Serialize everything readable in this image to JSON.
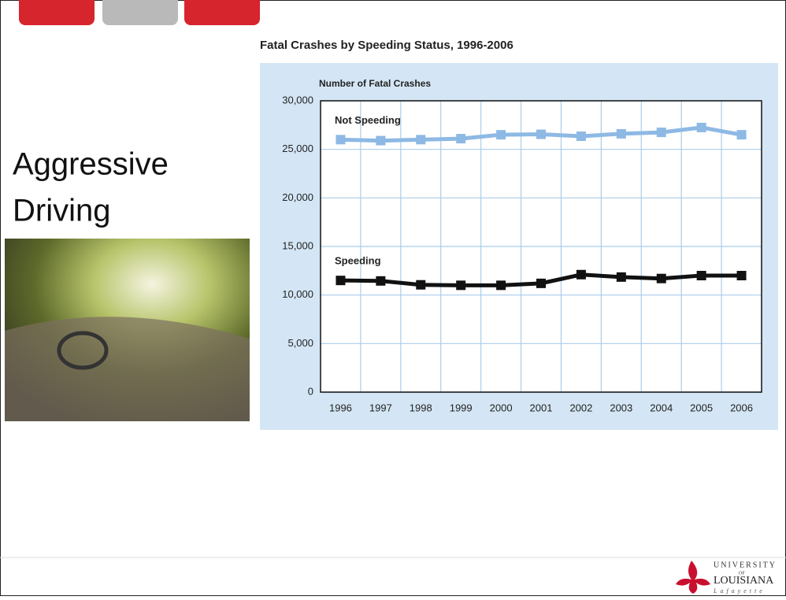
{
  "slide": {
    "title_lines": [
      "Aggressive",
      "Driving"
    ],
    "logo": {
      "line1": "UNIVERSITY",
      "line2": "OF",
      "line3": "LOUISIANA",
      "line4": "Lafayette"
    }
  },
  "chart_data": {
    "type": "line",
    "title": "Fatal Crashes by Speeding Status, 1996-2006",
    "y_label": "Number of Fatal Crashes",
    "categories": [
      "1996",
      "1997",
      "1998",
      "1999",
      "2000",
      "2001",
      "2002",
      "2003",
      "2004",
      "2005",
      "2006"
    ],
    "series": [
      {
        "name": "Not Speeding",
        "color": "#8db9e4",
        "values": [
          26000,
          25900,
          26000,
          26100,
          26500,
          26550,
          26350,
          26600,
          26750,
          27250,
          26500
        ]
      },
      {
        "name": "Speeding",
        "color": "#111111",
        "values": [
          11500,
          11450,
          11050,
          11000,
          11000,
          11200,
          12100,
          11850,
          11700,
          12000,
          12000
        ]
      }
    ],
    "ylim": [
      0,
      30000
    ],
    "yticks": [
      0,
      {
        "value": 5000,
        "label": "5,000"
      },
      {
        "value": 10000,
        "label": "10,000"
      },
      {
        "value": 15000,
        "label": "15,000"
      },
      {
        "value": 20000,
        "label": "20,000"
      },
      {
        "value": 25000,
        "label": "25,000"
      },
      {
        "value": 30000,
        "label": "30,000"
      }
    ],
    "grid": true
  }
}
